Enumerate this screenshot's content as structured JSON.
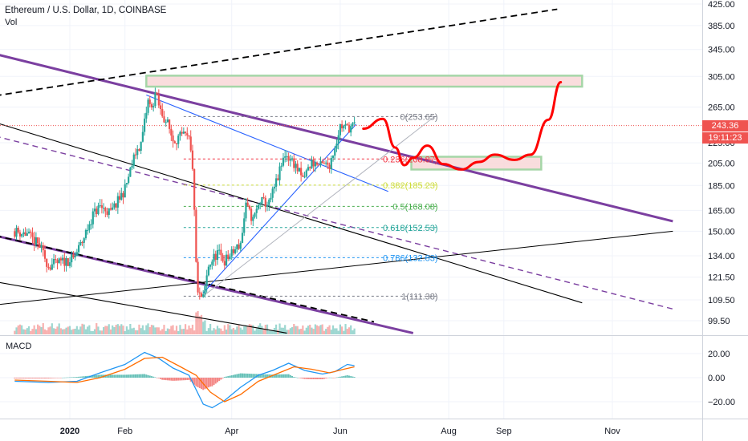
{
  "header": {
    "title": "Ethereum / U.S. Dollar, 1D, COINBASE",
    "volume_label": "Vol",
    "macd_label": "MACD"
  },
  "price_tags": {
    "last": "243.36",
    "countdown": "19:11:23"
  },
  "colors": {
    "up": "#26a69a",
    "down": "#ef5350",
    "blue_line": "#2962ff",
    "purple": "#7b3fa0",
    "red_path": "#ff0000",
    "macd": "#2196f3",
    "signal": "#ff6d00",
    "zone_fill": "#f8d7d7",
    "zone_border": "#a5d6a7"
  },
  "chart_data": [
    {
      "type": "candlestick",
      "title": "Ethereum / U.S. Dollar, 1D, COINBASE",
      "y_axis": {
        "scale": "log",
        "ylim": [
          94,
          440
        ],
        "tick_labels": [
          "425.00",
          "385.00",
          "345.00",
          "305.00",
          "265.00",
          "225.00",
          "205.00",
          "185.00",
          "165.00",
          "150.00",
          "134.00",
          "121.50",
          "109.50",
          "99.50"
        ],
        "tick_values": [
          425,
          385,
          345,
          305,
          265,
          225,
          205,
          185,
          165,
          150,
          134,
          121.5,
          109.5,
          99.5
        ]
      },
      "x_axis": {
        "tick_labels": [
          "2020",
          "Feb",
          "Apr",
          "Jun",
          "Aug",
          "Sep",
          "Nov"
        ],
        "tick_dates": [
          "2020-01-01",
          "2020-02-01",
          "2020-04-01",
          "2020-06-01",
          "2020-08-01",
          "2020-09-01",
          "2020-11-01"
        ]
      },
      "price_path": [
        [
          "2019-12-01",
          150
        ],
        [
          "2019-12-08",
          148
        ],
        [
          "2019-12-15",
          140
        ],
        [
          "2019-12-20",
          128
        ],
        [
          "2019-12-27",
          130
        ],
        [
          "2020-01-03",
          132
        ],
        [
          "2020-01-08",
          143
        ],
        [
          "2020-01-14",
          162
        ],
        [
          "2020-01-18",
          168
        ],
        [
          "2020-01-24",
          163
        ],
        [
          "2020-01-28",
          172
        ],
        [
          "2020-02-01",
          182
        ],
        [
          "2020-02-07",
          215
        ],
        [
          "2020-02-10",
          224
        ],
        [
          "2020-02-14",
          272
        ],
        [
          "2020-02-16",
          262
        ],
        [
          "2020-02-18",
          282
        ],
        [
          "2020-02-21",
          260
        ],
        [
          "2020-02-25",
          245
        ],
        [
          "2020-02-28",
          228
        ],
        [
          "2020-03-05",
          232
        ],
        [
          "2020-03-08",
          228
        ],
        [
          "2020-03-10",
          202
        ],
        [
          "2020-03-12",
          130
        ],
        [
          "2020-03-13",
          112
        ],
        [
          "2020-03-16",
          110
        ],
        [
          "2020-03-19",
          128
        ],
        [
          "2020-03-24",
          136
        ],
        [
          "2020-03-28",
          131
        ],
        [
          "2020-04-01",
          135
        ],
        [
          "2020-04-06",
          142
        ],
        [
          "2020-04-09",
          168
        ],
        [
          "2020-04-13",
          158
        ],
        [
          "2020-04-17",
          172
        ],
        [
          "2020-04-22",
          170
        ],
        [
          "2020-04-28",
          197
        ],
        [
          "2020-05-01",
          214
        ],
        [
          "2020-05-06",
          205
        ],
        [
          "2020-05-11",
          190
        ],
        [
          "2020-05-16",
          206
        ],
        [
          "2020-05-21",
          202
        ],
        [
          "2020-05-26",
          204
        ],
        [
          "2020-05-29",
          221
        ],
        [
          "2020-06-01",
          243
        ],
        [
          "2020-06-05",
          241
        ],
        [
          "2020-06-09",
          243
        ]
      ],
      "fibonacci": {
        "anchor": {
          "from": [
            "2020-03-16",
            111.38
          ],
          "to": [
            "2020-06-03",
            253.65
          ]
        },
        "levels": [
          {
            "label": "0(253.65)",
            "value": 253.65,
            "color": "#787b86"
          },
          {
            "label": "0.236(208.87)",
            "value": 208.87,
            "color": "#f23645"
          },
          {
            "label": "0.382(185.23)",
            "value": 185.23,
            "color": "#cddc39"
          },
          {
            "label": "0.5(168.08)",
            "value": 168.08,
            "color": "#4caf50"
          },
          {
            "label": "0.618(152.53)",
            "value": 152.53,
            "color": "#26a69a"
          },
          {
            "label": "0.786(132.83)",
            "value": 132.83,
            "color": "#2196f3"
          },
          {
            "label": "1(111.38)",
            "value": 111.38,
            "color": "#787b86"
          }
        ]
      },
      "last_price": 243.36,
      "drawings": {
        "resistance_zone": {
          "from": "2020-02-13",
          "to": "2020-10-15",
          "low": 291,
          "high": 306
        },
        "support_zone": {
          "from": "2020-07-11",
          "to": "2020-09-22",
          "low": 199,
          "high": 211
        },
        "projection_path": [
          [
            "2020-06-14",
            240
          ],
          [
            "2020-06-25",
            251
          ],
          [
            "2020-07-02",
            220
          ],
          [
            "2020-07-07",
            203
          ],
          [
            "2020-07-12",
            210
          ],
          [
            "2020-07-20",
            222
          ],
          [
            "2020-07-29",
            204
          ],
          [
            "2020-08-08",
            199
          ],
          [
            "2020-08-18",
            206
          ],
          [
            "2020-08-27",
            213
          ],
          [
            "2020-09-07",
            208
          ],
          [
            "2020-09-16",
            213
          ],
          [
            "2020-09-26",
            250
          ],
          [
            "2020-10-03",
            297
          ]
        ]
      }
    },
    {
      "type": "histogram",
      "title": "MACD",
      "y_axis": {
        "tick_labels": [
          "20.00",
          "0.00",
          "−20.00"
        ],
        "tick_values": [
          20,
          0,
          -20
        ],
        "ylim": [
          -34,
          30
        ]
      },
      "macd_line": [
        [
          "2019-12-01",
          -3
        ],
        [
          "2019-12-20",
          -4
        ],
        [
          "2020-01-05",
          -3
        ],
        [
          "2020-01-18",
          4
        ],
        [
          "2020-02-01",
          11
        ],
        [
          "2020-02-12",
          21
        ],
        [
          "2020-02-20",
          16
        ],
        [
          "2020-02-28",
          8
        ],
        [
          "2020-03-08",
          2
        ],
        [
          "2020-03-16",
          -22
        ],
        [
          "2020-03-21",
          -25
        ],
        [
          "2020-03-28",
          -19
        ],
        [
          "2020-04-06",
          -8
        ],
        [
          "2020-04-16",
          2
        ],
        [
          "2020-04-24",
          6
        ],
        [
          "2020-05-03",
          12
        ],
        [
          "2020-05-12",
          6
        ],
        [
          "2020-05-22",
          3
        ],
        [
          "2020-05-29",
          5
        ],
        [
          "2020-06-05",
          11
        ],
        [
          "2020-06-09",
          10
        ]
      ],
      "signal_line": [
        [
          "2019-12-01",
          -2
        ],
        [
          "2019-12-20",
          -3
        ],
        [
          "2020-01-05",
          -4
        ],
        [
          "2020-01-18",
          0
        ],
        [
          "2020-02-01",
          7
        ],
        [
          "2020-02-12",
          16
        ],
        [
          "2020-02-22",
          17
        ],
        [
          "2020-03-02",
          10
        ],
        [
          "2020-03-12",
          2
        ],
        [
          "2020-03-20",
          -12
        ],
        [
          "2020-03-28",
          -20
        ],
        [
          "2020-04-06",
          -14
        ],
        [
          "2020-04-16",
          -3
        ],
        [
          "2020-04-26",
          3
        ],
        [
          "2020-05-06",
          9
        ],
        [
          "2020-05-16",
          7
        ],
        [
          "2020-05-26",
          4
        ],
        [
          "2020-06-03",
          7
        ],
        [
          "2020-06-09",
          9
        ]
      ]
    }
  ]
}
